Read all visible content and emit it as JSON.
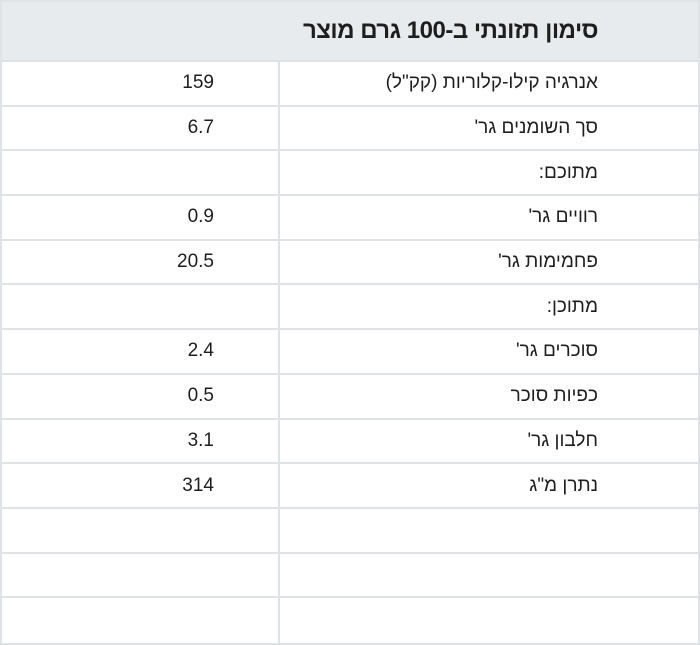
{
  "header": {
    "title": "סימון תזונתי ב-100 גרם מוצר"
  },
  "table": {
    "rows": [
      {
        "label": "אנרגיה קילו-קלוריות (קק\"ל)",
        "value": "159"
      },
      {
        "label": "סך השומנים גר'",
        "value": "6.7"
      },
      {
        "label": "מתוכם:"
      },
      {
        "label": "רוויים גר'",
        "value": "0.9"
      },
      {
        "label": "פחמימות גר'",
        "value": "20.5"
      },
      {
        "label": "מתוכן:"
      },
      {
        "label": "סוכרים גר'",
        "value": "2.4"
      },
      {
        "label": "כפיות סוכר",
        "value": "0.5"
      },
      {
        "label": "חלבון גר'",
        "value": "3.1"
      },
      {
        "label": "נתרן מ\"ג",
        "value": "314"
      }
    ]
  }
}
